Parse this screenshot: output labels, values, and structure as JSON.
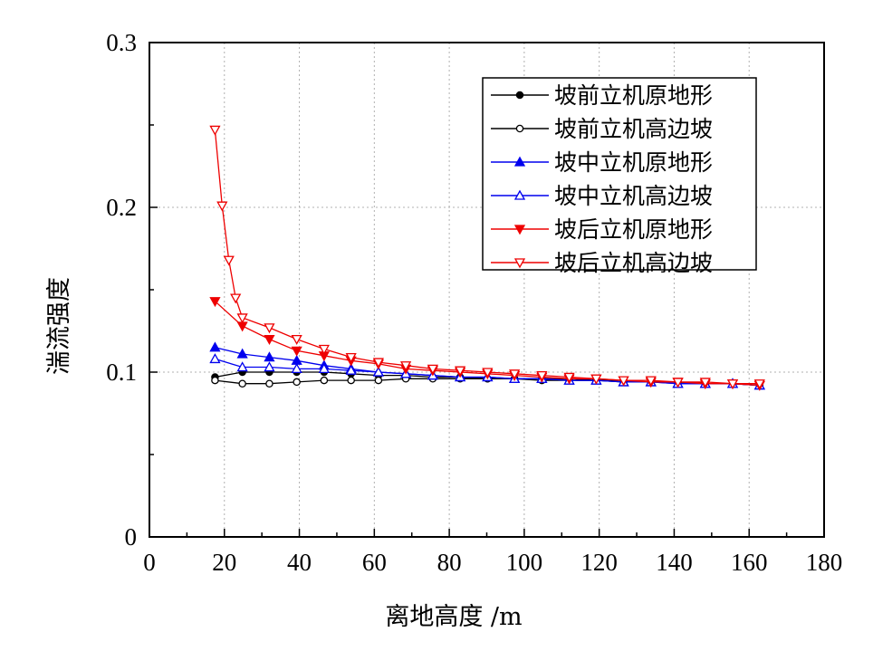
{
  "chart_data": {
    "type": "line",
    "xlabel": "离地高度 /m",
    "ylabel": "湍流强度",
    "xlim": [
      0,
      180
    ],
    "ylim": [
      0,
      0.3
    ],
    "x_ticks": [
      "0",
      "20",
      "40",
      "60",
      "80",
      "100",
      "120",
      "140",
      "160",
      "180"
    ],
    "y_ticks": [
      "0",
      "0.1",
      "0.2",
      "0.3"
    ],
    "grid": "dotted",
    "legend_position": "top-right",
    "x": [
      17.5,
      24.8,
      32.0,
      39.3,
      46.6,
      53.8,
      61.1,
      68.4,
      75.6,
      82.9,
      90.2,
      97.4,
      104.7,
      112.0,
      119.2,
      126.5,
      133.8,
      141.0,
      148.3,
      155.6,
      162.8
    ],
    "series": [
      {
        "name": "坡前立机原地形",
        "color": "#000000",
        "marker": "circle-filled",
        "x": [
          17.5,
          24.8,
          32.0,
          39.3,
          46.6,
          53.8,
          61.1,
          68.4,
          75.6,
          82.9,
          90.2,
          97.4,
          104.7,
          112.0,
          119.2,
          126.5,
          133.8,
          141.0,
          148.3,
          155.6,
          162.8
        ],
        "values": [
          0.097,
          0.1,
          0.1,
          0.1,
          0.1,
          0.099,
          0.098,
          0.098,
          0.097,
          0.097,
          0.096,
          0.096,
          0.096,
          0.096,
          0.095,
          0.095,
          0.094,
          0.094,
          0.093,
          0.093,
          0.092
        ]
      },
      {
        "name": "坡前立机高边坡",
        "color": "#000000",
        "marker": "circle-open",
        "x": [
          17.5,
          24.8,
          32.0,
          39.3,
          46.6,
          53.8,
          61.1,
          68.4,
          75.6,
          82.9,
          90.2,
          97.4,
          104.7,
          112.0,
          119.2,
          126.5,
          133.8,
          141.0,
          148.3,
          155.6,
          162.8
        ],
        "values": [
          0.095,
          0.093,
          0.093,
          0.094,
          0.095,
          0.095,
          0.095,
          0.096,
          0.096,
          0.096,
          0.096,
          0.096,
          0.095,
          0.095,
          0.095,
          0.094,
          0.094,
          0.094,
          0.093,
          0.093,
          0.092
        ]
      },
      {
        "name": "坡中立机原地形",
        "color": "#0000ee",
        "marker": "triangle-up-filled",
        "x": [
          17.5,
          24.8,
          32.0,
          39.3,
          46.6,
          53.8,
          61.1,
          68.4,
          75.6,
          82.9,
          90.2,
          97.4,
          104.7,
          112.0,
          119.2,
          126.5,
          133.8,
          141.0,
          148.3,
          155.6,
          162.8
        ],
        "values": [
          0.115,
          0.111,
          0.109,
          0.107,
          0.104,
          0.102,
          0.1,
          0.099,
          0.098,
          0.097,
          0.097,
          0.096,
          0.096,
          0.095,
          0.095,
          0.094,
          0.094,
          0.093,
          0.093,
          0.093,
          0.092
        ]
      },
      {
        "name": "坡中立机高边坡",
        "color": "#0000ee",
        "marker": "triangle-up-open",
        "x": [
          17.5,
          24.8,
          32.0,
          39.3,
          46.6,
          53.8,
          61.1,
          68.4,
          75.6,
          82.9,
          90.2,
          97.4,
          104.7,
          112.0,
          119.2,
          126.5,
          133.8,
          141.0,
          148.3,
          155.6,
          162.8
        ],
        "values": [
          0.108,
          0.103,
          0.103,
          0.102,
          0.102,
          0.101,
          0.1,
          0.099,
          0.098,
          0.097,
          0.097,
          0.096,
          0.096,
          0.095,
          0.095,
          0.094,
          0.094,
          0.093,
          0.093,
          0.093,
          0.092
        ]
      },
      {
        "name": "坡后立机原地形",
        "color": "#ee0000",
        "marker": "triangle-down-filled",
        "x": [
          17.5,
          24.8,
          32.0,
          39.3,
          46.6,
          53.8,
          61.1,
          68.4,
          75.6,
          82.9,
          90.2,
          97.4,
          104.7,
          112.0,
          119.2,
          126.5,
          133.8,
          141.0,
          148.3,
          155.6,
          162.8
        ],
        "values": [
          0.143,
          0.128,
          0.12,
          0.113,
          0.11,
          0.107,
          0.105,
          0.102,
          0.101,
          0.1,
          0.099,
          0.098,
          0.097,
          0.096,
          0.096,
          0.095,
          0.094,
          0.094,
          0.093,
          0.093,
          0.092
        ]
      },
      {
        "name": "坡后立机高边坡",
        "color": "#ee0000",
        "marker": "triangle-down-open",
        "x": [
          17.5,
          19.4,
          21.2,
          23.0,
          24.8,
          32.0,
          39.3,
          46.6,
          53.8,
          61.1,
          68.4,
          75.6,
          82.9,
          90.2,
          97.4,
          104.7,
          112.0,
          119.2,
          126.5,
          133.8,
          141.0,
          148.3,
          155.6,
          162.8
        ],
        "values": [
          0.247,
          0.201,
          0.168,
          0.145,
          0.133,
          0.127,
          0.12,
          0.114,
          0.109,
          0.106,
          0.104,
          0.102,
          0.101,
          0.1,
          0.099,
          0.098,
          0.097,
          0.096,
          0.095,
          0.095,
          0.094,
          0.094,
          0.093,
          0.093
        ]
      }
    ]
  }
}
